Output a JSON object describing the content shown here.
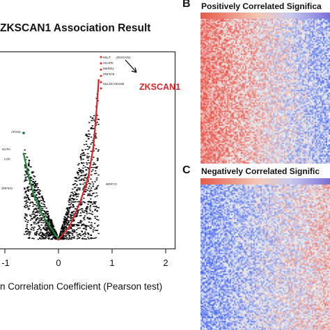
{
  "panel_a": {
    "title": "ZKSCAN1 Association Result",
    "xlabel": "n Correlation Coefficient (Pearson test)",
    "xticks": [
      "-1",
      "0",
      "1",
      "2"
    ],
    "highlight_gene": "ZKSCAN1",
    "point_labels": [
      "MLLT",
      "ZKSCAN1",
      "AKAP8",
      "MKRN1",
      "ZNF678",
      "MLLDC100196",
      "AP2S1",
      "NCPA",
      "LOC",
      "ZNF531",
      "WDFY3"
    ],
    "colors": {
      "positive": "#d6252b",
      "negative": "#1f8a3a",
      "neutral": "#000000",
      "dot": "#0f6b5c"
    }
  },
  "panel_b": {
    "letter": "B",
    "title": "Positively Correlated Significa"
  },
  "panel_c": {
    "letter": "C",
    "title": "Negatively Correlated Signific"
  },
  "chart_data": [
    {
      "type": "scatter",
      "title": "ZKSCAN1 Association Result",
      "xlabel": "n Correlation Coefficient (Pearson test)",
      "xticks": [
        -1,
        0,
        1,
        2
      ],
      "xlim": [
        -1,
        2
      ],
      "series": [
        {
          "name": "",
          "x": [
            -0.65,
            -0.55,
            -0.45,
            -0.3,
            -0.15,
            0.0
          ],
          "y": [
            14,
            10,
            7,
            4,
            2,
            0
          ]
        },
        {
          "name": "",
          "x": [
            0.0,
            0.2,
            0.4,
            0.55,
            0.65,
            0.7,
            0.75
          ],
          "y": [
            0,
            2,
            6,
            10,
            15,
            20,
            26
          ]
        }
      ]
    },
    {
      "type": "heatmap",
      "title": "Positively Correlated Significa",
      "cmap": [
        "#e45a4a",
        "#f7f7f7",
        "#4a64d6"
      ]
    },
    {
      "type": "heatmap",
      "title": "Negatively Correlated Signific",
      "cmap": [
        "#e45a4a",
        "#f7f7f7",
        "#4a64d6"
      ]
    }
  ]
}
